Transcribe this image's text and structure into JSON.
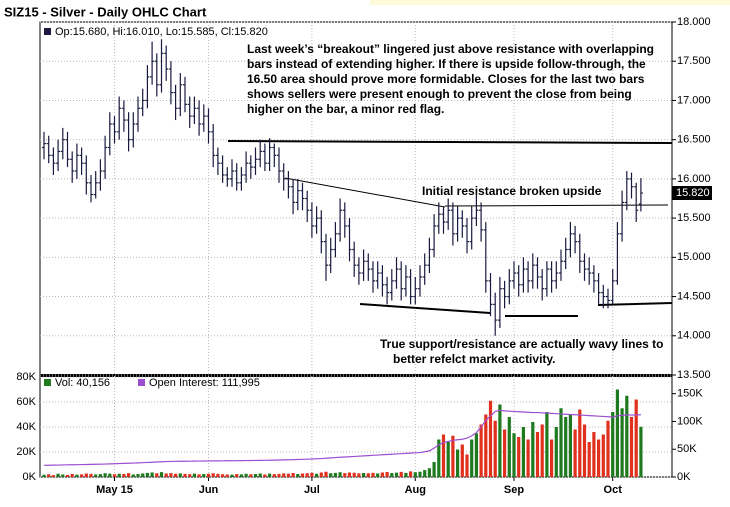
{
  "chart_data": {
    "type": "ohlc",
    "title": "SIZ15 - Silver - Daily OHLC Chart",
    "legend_text": "Op:15.680, Hi:16.010, Lo:15.585, Cl:15.820",
    "last_label": "15.820",
    "bar_color": "#1a1a40",
    "annotations": [
      "Last week’s “breakout” lingered just above resistance with overlapping",
      "bars instead of extending higher.  If there is upside follow-through, the",
      "16.50 area should prove more formidable.  Closes for the last two bars",
      "shows sellers were present enough to prevent the close from being",
      "higher on the bar, a minor red flag.",
      "Initial resistance broken upside",
      "True support/resistance are actually wavy lines to",
      "better refelct market activity."
    ],
    "ylim": [
      13.5,
      18.0
    ],
    "yticks": [
      {
        "value": 13.5,
        "label": "13.500"
      },
      {
        "value": 14.0,
        "label": "14.000"
      },
      {
        "value": 14.5,
        "label": "14.500"
      },
      {
        "value": 15.0,
        "label": "15.000"
      },
      {
        "value": 15.5,
        "label": "15.500"
      },
      {
        "value": 16.0,
        "label": "16.000"
      },
      {
        "value": 16.5,
        "label": "16.500"
      },
      {
        "value": 17.0,
        "label": "17.000"
      },
      {
        "value": 17.5,
        "label": "17.500"
      },
      {
        "value": 18.0,
        "label": "18.000"
      }
    ],
    "xticks": [
      {
        "value": 15,
        "label": "May 15"
      },
      {
        "value": 35,
        "label": "Jun"
      },
      {
        "value": 57,
        "label": "Jul"
      },
      {
        "value": 79,
        "label": "Aug"
      },
      {
        "value": 100,
        "label": "Sep"
      },
      {
        "value": 121,
        "label": "Oct"
      }
    ],
    "ohlc": [
      [
        16.4,
        16.6,
        16.25,
        16.45
      ],
      [
        16.45,
        16.55,
        16.2,
        16.3
      ],
      [
        16.3,
        16.4,
        16.05,
        16.2
      ],
      [
        16.2,
        16.5,
        16.1,
        16.35
      ],
      [
        16.35,
        16.65,
        16.25,
        16.5
      ],
      [
        16.5,
        16.6,
        16.15,
        16.25
      ],
      [
        16.25,
        16.35,
        15.95,
        16.1
      ],
      [
        16.1,
        16.45,
        16.0,
        16.3
      ],
      [
        16.3,
        16.4,
        16.05,
        16.2
      ],
      [
        16.2,
        16.3,
        15.8,
        15.95
      ],
      [
        15.95,
        16.05,
        15.7,
        15.8
      ],
      [
        15.8,
        16.1,
        15.75,
        15.95
      ],
      [
        15.95,
        16.25,
        15.85,
        16.1
      ],
      [
        16.1,
        16.55,
        16.0,
        16.4
      ],
      [
        16.4,
        16.85,
        16.3,
        16.7
      ],
      [
        16.7,
        16.8,
        16.45,
        16.6
      ],
      [
        16.6,
        17.05,
        16.5,
        16.9
      ],
      [
        16.9,
        17.0,
        16.6,
        16.75
      ],
      [
        16.75,
        16.85,
        16.35,
        16.5
      ],
      [
        16.5,
        16.85,
        16.4,
        16.7
      ],
      [
        16.7,
        17.05,
        16.6,
        16.9
      ],
      [
        16.9,
        17.15,
        16.8,
        17.0
      ],
      [
        17.0,
        17.45,
        16.9,
        17.3
      ],
      [
        17.3,
        17.75,
        17.2,
        17.5
      ],
      [
        17.5,
        17.6,
        17.05,
        17.2
      ],
      [
        17.2,
        17.78,
        17.1,
        17.6
      ],
      [
        17.6,
        17.7,
        17.25,
        17.4
      ],
      [
        17.4,
        17.5,
        16.95,
        17.1
      ],
      [
        17.1,
        17.2,
        16.75,
        16.9
      ],
      [
        16.9,
        17.35,
        16.8,
        17.2
      ],
      [
        17.2,
        17.3,
        16.85,
        16.95
      ],
      [
        16.95,
        17.05,
        16.65,
        16.8
      ],
      [
        16.8,
        17.05,
        16.7,
        16.9
      ],
      [
        16.9,
        17.0,
        16.55,
        16.7
      ],
      [
        16.7,
        16.95,
        16.6,
        16.8
      ],
      [
        16.8,
        16.9,
        16.45,
        16.6
      ],
      [
        16.6,
        16.7,
        16.15,
        16.3
      ],
      [
        16.3,
        16.4,
        16.05,
        16.2
      ],
      [
        16.2,
        16.3,
        15.95,
        16.05
      ],
      [
        16.05,
        16.15,
        15.9,
        16.0
      ],
      [
        16.0,
        16.25,
        15.9,
        16.1
      ],
      [
        16.1,
        16.2,
        15.85,
        15.95
      ],
      [
        15.95,
        16.15,
        15.85,
        16.05
      ],
      [
        16.05,
        16.35,
        15.95,
        16.2
      ],
      [
        16.2,
        16.3,
        16.0,
        16.15
      ],
      [
        16.15,
        16.4,
        16.05,
        16.25
      ],
      [
        16.25,
        16.5,
        16.15,
        16.35
      ],
      [
        16.35,
        16.45,
        16.1,
        16.2
      ],
      [
        16.2,
        16.52,
        16.1,
        16.4
      ],
      [
        16.4,
        16.45,
        16.15,
        16.3
      ],
      [
        16.3,
        16.4,
        15.95,
        16.1
      ],
      [
        16.1,
        16.2,
        15.85,
        16.0
      ],
      [
        16.0,
        16.1,
        15.75,
        15.9
      ],
      [
        15.9,
        16.0,
        15.55,
        15.7
      ],
      [
        15.7,
        16.0,
        15.6,
        15.85
      ],
      [
        15.85,
        15.95,
        15.6,
        15.75
      ],
      [
        15.75,
        15.85,
        15.45,
        15.6
      ],
      [
        15.6,
        15.7,
        15.25,
        15.4
      ],
      [
        15.4,
        15.65,
        15.3,
        15.5
      ],
      [
        15.5,
        15.6,
        15.05,
        15.2
      ],
      [
        15.2,
        15.3,
        14.7,
        14.9
      ],
      [
        14.9,
        15.25,
        14.8,
        15.1
      ],
      [
        15.1,
        15.45,
        15.0,
        15.3
      ],
      [
        15.3,
        15.75,
        15.2,
        15.6
      ],
      [
        15.6,
        15.7,
        15.25,
        15.4
      ],
      [
        15.4,
        15.5,
        14.95,
        15.1
      ],
      [
        15.1,
        15.2,
        14.75,
        14.9
      ],
      [
        14.9,
        15.0,
        14.65,
        14.8
      ],
      [
        14.8,
        15.1,
        14.7,
        14.95
      ],
      [
        14.95,
        15.05,
        14.7,
        14.85
      ],
      [
        14.85,
        14.95,
        14.55,
        14.7
      ],
      [
        14.7,
        14.95,
        14.6,
        14.8
      ],
      [
        14.8,
        14.9,
        14.5,
        14.65
      ],
      [
        14.65,
        14.75,
        14.4,
        14.55
      ],
      [
        14.55,
        14.85,
        14.45,
        14.7
      ],
      [
        14.7,
        15.0,
        14.6,
        14.85
      ],
      [
        14.85,
        14.95,
        14.45,
        14.6
      ],
      [
        14.6,
        14.9,
        14.5,
        14.75
      ],
      [
        14.75,
        14.85,
        14.4,
        14.5
      ],
      [
        14.5,
        14.75,
        14.4,
        14.6
      ],
      [
        14.6,
        14.9,
        14.5,
        14.75
      ],
      [
        14.75,
        15.05,
        14.65,
        14.9
      ],
      [
        14.9,
        15.25,
        14.8,
        15.1
      ],
      [
        15.1,
        15.55,
        15.0,
        15.4
      ],
      [
        15.4,
        15.7,
        15.3,
        15.55
      ],
      [
        15.55,
        15.65,
        15.3,
        15.45
      ],
      [
        15.45,
        15.75,
        15.35,
        15.6
      ],
      [
        15.6,
        15.7,
        15.15,
        15.3
      ],
      [
        15.3,
        15.65,
        15.2,
        15.5
      ],
      [
        15.5,
        15.6,
        15.25,
        15.4
      ],
      [
        15.4,
        15.5,
        15.05,
        15.2
      ],
      [
        15.2,
        15.65,
        15.1,
        15.5
      ],
      [
        15.5,
        15.8,
        15.4,
        15.6
      ],
      [
        15.6,
        15.7,
        15.2,
        15.35
      ],
      [
        15.35,
        15.45,
        14.55,
        14.7
      ],
      [
        14.7,
        14.8,
        14.25,
        14.4
      ],
      [
        14.4,
        14.55,
        14.0,
        14.2
      ],
      [
        14.2,
        14.75,
        14.1,
        14.6
      ],
      [
        14.6,
        14.7,
        14.35,
        14.5
      ],
      [
        14.5,
        14.85,
        14.4,
        14.7
      ],
      [
        14.7,
        14.95,
        14.6,
        14.8
      ],
      [
        14.8,
        14.9,
        14.5,
        14.65
      ],
      [
        14.65,
        15.0,
        14.55,
        14.85
      ],
      [
        14.85,
        14.95,
        14.55,
        14.7
      ],
      [
        14.7,
        15.05,
        14.6,
        14.9
      ],
      [
        14.9,
        15.0,
        14.6,
        14.75
      ],
      [
        14.75,
        14.85,
        14.45,
        14.6
      ],
      [
        14.6,
        14.95,
        14.5,
        14.85
      ],
      [
        14.85,
        14.95,
        14.55,
        14.7
      ],
      [
        14.7,
        14.95,
        14.6,
        14.8
      ],
      [
        14.8,
        15.1,
        14.7,
        14.95
      ],
      [
        14.95,
        15.25,
        14.85,
        15.1
      ],
      [
        15.1,
        15.45,
        15.0,
        15.3
      ],
      [
        15.3,
        15.4,
        15.05,
        15.2
      ],
      [
        15.2,
        15.3,
        14.8,
        14.95
      ],
      [
        14.95,
        15.05,
        14.7,
        14.85
      ],
      [
        14.85,
        15.0,
        14.65,
        14.8
      ],
      [
        14.8,
        14.9,
        14.55,
        14.7
      ],
      [
        14.7,
        14.8,
        14.4,
        14.55
      ],
      [
        14.55,
        14.65,
        14.35,
        14.5
      ],
      [
        14.5,
        14.6,
        14.35,
        14.45
      ],
      [
        14.45,
        14.85,
        14.4,
        14.7
      ],
      [
        14.7,
        15.45,
        14.65,
        15.3
      ],
      [
        15.3,
        15.85,
        15.2,
        15.7
      ],
      [
        15.7,
        16.1,
        15.6,
        16.0
      ],
      [
        16.0,
        16.08,
        15.75,
        15.9
      ],
      [
        15.9,
        15.95,
        15.45,
        15.6
      ],
      [
        15.68,
        16.01,
        15.585,
        15.82
      ]
    ],
    "volume_panel": {
      "legend": [
        "Vol: 40,156",
        "Open Interest: 111,995"
      ],
      "up_color": "#1f7a1f",
      "down_color": "#e0301e",
      "oi_color": "#9b4fd0",
      "ylim": [
        0,
        80000
      ],
      "yticks": [
        {
          "value": 0,
          "label": "0K"
        },
        {
          "value": 20000,
          "label": "20K"
        },
        {
          "value": 40000,
          "label": "40K"
        },
        {
          "value": 60000,
          "label": "60K"
        },
        {
          "value": 80000,
          "label": "80K"
        }
      ],
      "y2lim": [
        0,
        180000
      ],
      "y2ticks": [
        {
          "value": 0,
          "label": "0K"
        },
        {
          "value": 50000,
          "label": "50K"
        },
        {
          "value": 100000,
          "label": "100K"
        },
        {
          "value": 150000,
          "label": "150K"
        }
      ],
      "volume": [
        1800,
        2200,
        1500,
        2600,
        2000,
        1700,
        2400,
        1900,
        2100,
        2800,
        2500,
        2000,
        2300,
        3000,
        2700,
        2200,
        2600,
        2400,
        3100,
        2000,
        2400,
        2800,
        3300,
        3600,
        3000,
        3900,
        2800,
        3100,
        2600,
        2900,
        2500,
        2300,
        2700,
        2100,
        2400,
        2600,
        3000,
        2500,
        2200,
        2000,
        1900,
        2300,
        2100,
        2600,
        2200,
        2400,
        2800,
        2000,
        2700,
        2300,
        2500,
        2900,
        2600,
        3200,
        2400,
        2800,
        3000,
        3400,
        2600,
        3600,
        4200,
        3000,
        3300,
        3800,
        3100,
        3600,
        3400,
        2900,
        3200,
        3000,
        3300,
        2800,
        3600,
        4000,
        3200,
        3500,
        4100,
        3300,
        4500,
        3800,
        4200,
        5500,
        7000,
        12000,
        30000,
        34000,
        28000,
        33000,
        22000,
        26000,
        18000,
        30000,
        35000,
        42000,
        50000,
        61000,
        45000,
        58000,
        38000,
        48000,
        35000,
        32000,
        40000,
        30000,
        44000,
        36000,
        42000,
        52000,
        30000,
        40000,
        55000,
        48000,
        50000,
        38000,
        54000,
        42000,
        28000,
        36000,
        30000,
        34000,
        45000,
        52000,
        70000,
        55000,
        65000,
        48000,
        62000,
        40156
      ],
      "open_interest": [
        21000,
        21200,
        21400,
        21500,
        21700,
        21900,
        22000,
        22200,
        22400,
        22500,
        22700,
        22900,
        23100,
        23300,
        23600,
        23900,
        24200,
        24500,
        24800,
        25100,
        25400,
        25800,
        26200,
        26600,
        27000,
        27400,
        27800,
        28000,
        28200,
        28300,
        28400,
        28500,
        28600,
        28700,
        28800,
        28900,
        29000,
        29000,
        29100,
        29200,
        29300,
        29400,
        29500,
        29600,
        29700,
        29800,
        29900,
        30000,
        30200,
        30400,
        30600,
        30800,
        31000,
        31200,
        31500,
        31800,
        32100,
        32400,
        32800,
        33200,
        33800,
        34400,
        35000,
        35500,
        36000,
        36500,
        37000,
        37500,
        38000,
        38500,
        39000,
        39500,
        40000,
        40500,
        41000,
        41500,
        42000,
        42500,
        43000,
        43500,
        44000,
        45500,
        47000,
        52000,
        58000,
        62000,
        64000,
        66000,
        67000,
        68000,
        70000,
        74000,
        80000,
        90000,
        102000,
        110000,
        118000,
        120000,
        119000,
        118500,
        118000,
        117500,
        117000,
        116500,
        116000,
        116000,
        115500,
        115000,
        114500,
        114000,
        113500,
        113000,
        112500,
        112000,
        111500,
        111000,
        110500,
        110000,
        109500,
        109000,
        108500,
        108000,
        110000,
        111000,
        112000,
        111500,
        111800,
        111995
      ]
    }
  }
}
